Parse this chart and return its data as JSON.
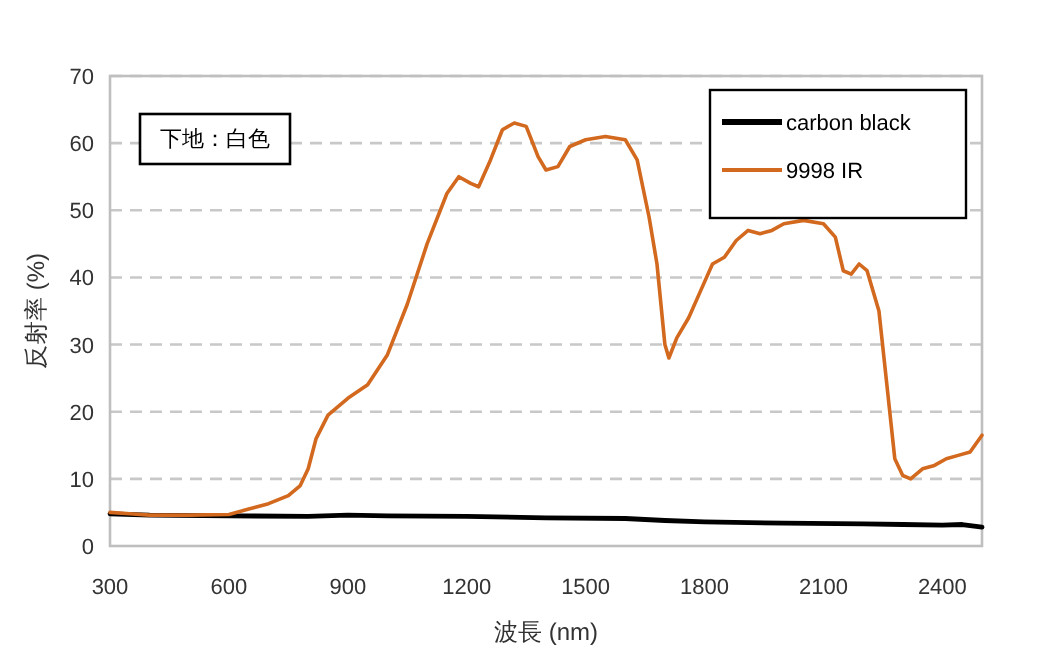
{
  "chart_data": {
    "type": "line",
    "xlabel": "波長 (nm)",
    "ylabel": "反射率 (%)",
    "annotations": [
      "下地：白色"
    ],
    "xlim": [
      300,
      2500
    ],
    "ylim": [
      0,
      70
    ],
    "xticks": [
      300,
      600,
      900,
      1200,
      1500,
      1800,
      2100,
      2400
    ],
    "yticks": [
      0,
      10,
      20,
      30,
      40,
      50,
      60,
      70
    ],
    "grid": "y",
    "legend": "top right",
    "series": [
      {
        "name": "carbon black",
        "color": "#000000",
        "x": [
          300,
          400,
          600,
          800,
          900,
          1000,
          1200,
          1400,
          1600,
          1700,
          1800,
          2000,
          2200,
          2300,
          2400,
          2450,
          2500
        ],
        "values": [
          4.8,
          4.6,
          4.5,
          4.4,
          4.6,
          4.5,
          4.4,
          4.2,
          4.1,
          3.8,
          3.6,
          3.4,
          3.3,
          3.2,
          3.1,
          3.2,
          2.8
        ]
      },
      {
        "name": "9998 IR",
        "color": "#d2691e",
        "x": [
          300,
          350,
          400,
          500,
          600,
          650,
          700,
          750,
          780,
          800,
          820,
          850,
          900,
          950,
          1000,
          1050,
          1100,
          1150,
          1180,
          1210,
          1230,
          1260,
          1290,
          1320,
          1350,
          1380,
          1400,
          1430,
          1460,
          1500,
          1550,
          1600,
          1630,
          1660,
          1680,
          1700,
          1710,
          1730,
          1760,
          1790,
          1820,
          1850,
          1880,
          1910,
          1940,
          1970,
          2000,
          2050,
          2100,
          2130,
          2150,
          2170,
          2190,
          2210,
          2240,
          2260,
          2280,
          2300,
          2320,
          2350,
          2380,
          2410,
          2440,
          2470,
          2500
        ],
        "values": [
          5.0,
          4.8,
          4.6,
          4.6,
          4.7,
          5.5,
          6.3,
          7.5,
          9.0,
          11.5,
          16.0,
          19.5,
          22.0,
          24.0,
          28.5,
          36.0,
          45.0,
          52.5,
          55.0,
          54.0,
          53.5,
          57.5,
          62.0,
          63.0,
          62.5,
          58.0,
          56.0,
          56.5,
          59.5,
          60.5,
          61.0,
          60.5,
          57.5,
          49.0,
          42.0,
          30.0,
          28.0,
          31.0,
          34.0,
          38.0,
          42.0,
          43.0,
          45.5,
          47.0,
          46.5,
          47.0,
          48.0,
          48.5,
          48.0,
          46.0,
          41.0,
          40.5,
          42.0,
          41.0,
          35.0,
          24.0,
          13.0,
          10.5,
          10.0,
          11.5,
          12.0,
          13.0,
          13.5,
          14.0,
          16.5
        ]
      }
    ]
  }
}
